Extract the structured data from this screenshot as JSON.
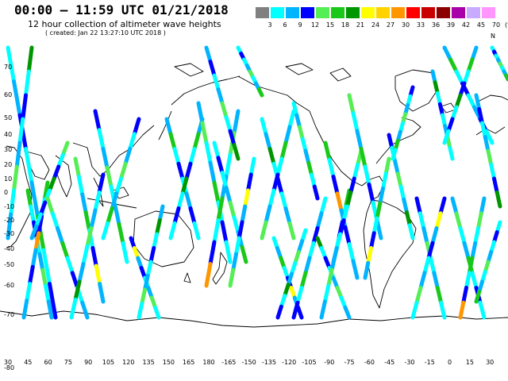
{
  "header": {
    "title": "00:00 – 11:59 UTC 01/21/2018",
    "subtitle": "12 hour collection of altimeter wave heights",
    "created": "( created: Jan 22 13:27:10 UTC 2018 )"
  },
  "legend": {
    "units_label": "(ft)",
    "bins": [
      {
        "label": "3",
        "color": "#808080"
      },
      {
        "label": "6",
        "color": "#00ffff"
      },
      {
        "label": "9",
        "color": "#00b4ff"
      },
      {
        "label": "12",
        "color": "#0000ff"
      },
      {
        "label": "15",
        "color": "#55ee55"
      },
      {
        "label": "18",
        "color": "#19c819"
      },
      {
        "label": "21",
        "color": "#009600"
      },
      {
        "label": "24",
        "color": "#ffff00"
      },
      {
        "label": "27",
        "color": "#ffd200"
      },
      {
        "label": "30",
        "color": "#ff9600"
      },
      {
        "label": "33",
        "color": "#ff0000"
      },
      {
        "label": "36",
        "color": "#c80000"
      },
      {
        "label": "39",
        "color": "#8c0000"
      },
      {
        "label": "42",
        "color": "#aa00aa"
      },
      {
        "label": "45",
        "color": "#c8aaff"
      },
      {
        "label": "70",
        "color": "#ff96ff"
      }
    ]
  },
  "map": {
    "lon_labels": [
      "30",
      "45",
      "60",
      "75",
      "90",
      "105",
      "120",
      "135",
      "150",
      "165",
      "180",
      "-165",
      "-150",
      "-135",
      "-120",
      "-105",
      "-90",
      "-75",
      "-60",
      "-45",
      "-30",
      "-15",
      "0",
      "15",
      "30"
    ],
    "lat_labels": [
      "70",
      "60",
      "50",
      "40",
      "30",
      "20",
      "10",
      "0",
      "-10",
      "-20",
      "-30",
      "-40",
      "-50",
      "-60",
      "-70",
      "-80"
    ],
    "north_label": "N"
  }
}
